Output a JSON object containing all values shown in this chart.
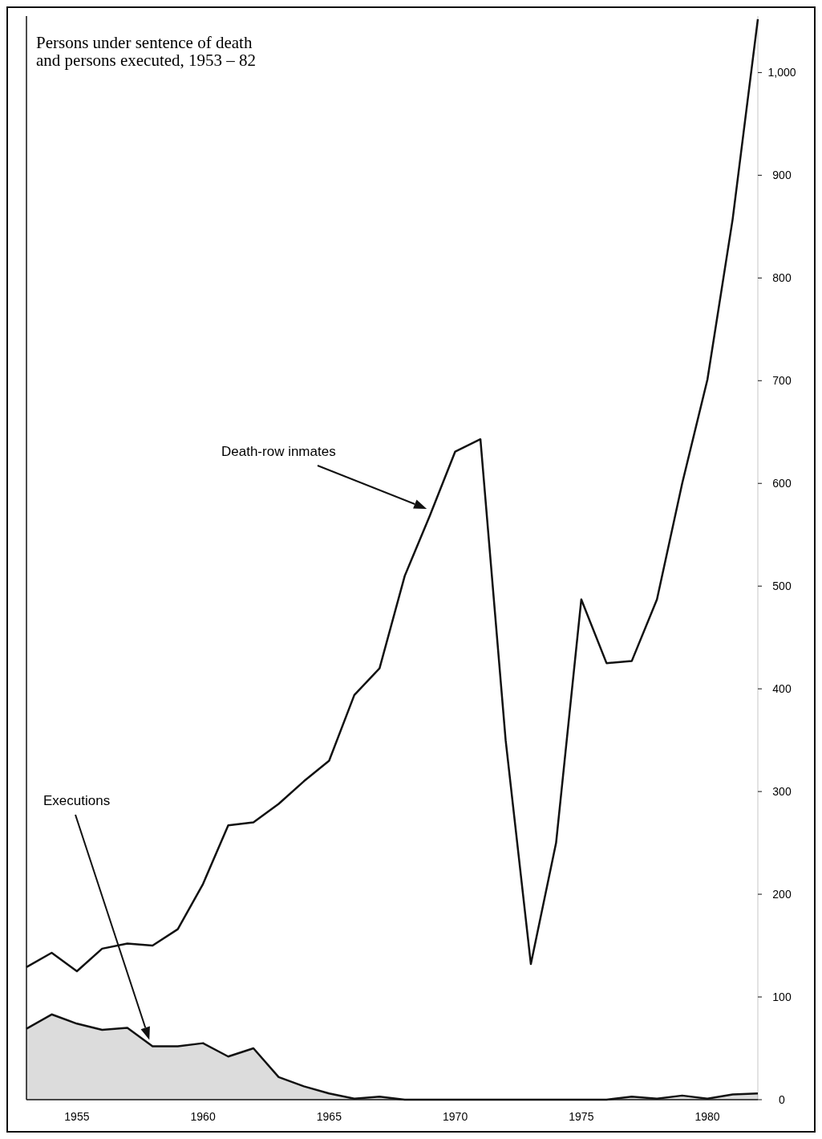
{
  "chart_data": {
    "type": "line",
    "title": "Persons under sentence of death\nand persons executed, 1953 – 82",
    "x": [
      1953,
      1954,
      1955,
      1956,
      1957,
      1958,
      1959,
      1960,
      1961,
      1962,
      1963,
      1964,
      1965,
      1966,
      1967,
      1968,
      1969,
      1970,
      1971,
      1972,
      1973,
      1974,
      1975,
      1976,
      1977,
      1978,
      1979,
      1980,
      1981,
      1982
    ],
    "series": [
      {
        "color": "#111111",
        "values": [
          129,
          143,
          125,
          147,
          152,
          150,
          166,
          210,
          267,
          270,
          288,
          310,
          330,
          394,
          420,
          510,
          569,
          631,
          643,
          350,
          132,
          250,
          487,
          425,
          427,
          487,
          600,
          701,
          857,
          1052
        ]
      },
      {
        "type": "area",
        "color": "#111111",
        "values": [
          69,
          83,
          74,
          68,
          70,
          52,
          52,
          55,
          42,
          50,
          22,
          13,
          6,
          1,
          3,
          0,
          0,
          0,
          0,
          0,
          0,
          0,
          0,
          0,
          3,
          1,
          4,
          1,
          5,
          6
        ]
      }
    ],
    "xlim": [
      1953,
      1982
    ],
    "xticks": [
      1955,
      1960,
      1965,
      1970,
      1975,
      1980
    ],
    "ylim": [
      0,
      1055
    ],
    "yticks": [
      0,
      100,
      200,
      300,
      400,
      500,
      600,
      700,
      800,
      900,
      {
        "value": 1000,
        "label": "1,000"
      }
    ],
    "grid": false,
    "annotations": [
      "Death-row inmates",
      "Executions"
    ]
  }
}
